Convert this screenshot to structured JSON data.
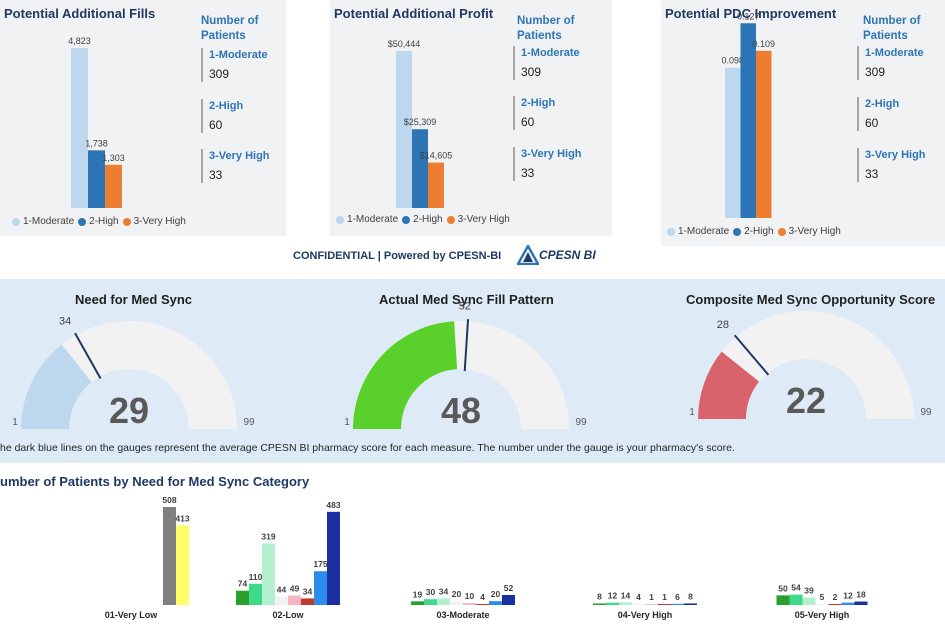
{
  "colors": {
    "moderate": "#bdd7ee",
    "high": "#2e75b6",
    "very_high": "#ed7d31",
    "gauge_bg": "#f2f2f2",
    "avg_line": "#1f3864"
  },
  "fills_chart": {
    "title": "Potential Additional Fills",
    "side_header": "Number of Patients",
    "categories": [
      {
        "name": "1-Moderate",
        "count": "309"
      },
      {
        "name": "2-High",
        "count": "60"
      },
      {
        "name": "3-Very High",
        "count": "33"
      }
    ],
    "legend": [
      "1-Moderate",
      "2-High",
      "3-Very High"
    ]
  },
  "profit_chart": {
    "title": "Potential Additional Profit",
    "side_header": "Number of Patients",
    "categories": [
      {
        "name": "1-Moderate",
        "count": "309"
      },
      {
        "name": "2-High",
        "count": "60"
      },
      {
        "name": "3-Very High",
        "count": "33"
      }
    ],
    "legend": [
      "1-Moderate",
      "2-High",
      "3-Very High"
    ]
  },
  "pdc_chart": {
    "title": "Potential PDC Improvement",
    "side_header": "Number of Patients",
    "categories": [
      {
        "name": "1-Moderate",
        "count": "309"
      },
      {
        "name": "2-High",
        "count": "60"
      },
      {
        "name": "3-Very High",
        "count": "33"
      }
    ],
    "legend": [
      "1-Moderate",
      "2-High",
      "3-Very High"
    ]
  },
  "footer": {
    "confidential": "CONFIDENTIAL | Powered by CPESN-BI",
    "logo_text": "CPESN BI"
  },
  "gauges": [
    {
      "title": "Need for Med Sync",
      "value": 29,
      "value_label": "29",
      "avg": 34,
      "avg_label": "34",
      "min_label": "1",
      "max_label": "99",
      "color": "#bdd7ee"
    },
    {
      "title": "Actual Med Sync Fill Pattern",
      "value": 48,
      "value_label": "48",
      "avg": 52,
      "avg_label": "52",
      "min_label": "1",
      "max_label": "99",
      "color": "#5ad12a"
    },
    {
      "title": "Composite Med Sync Opportunity Score",
      "value": 22,
      "value_label": "22",
      "avg": 28,
      "avg_label": "28",
      "min_label": "1",
      "max_label": "99",
      "color": "#d9636c"
    }
  ],
  "gauge_note": "he dark blue lines on the gauges represent the average CPESN BI pharmacy score for each measure. The number under the gauge is your pharmacy's score.",
  "bottom": {
    "title": "umber of Patients by Need for Med Sync Category"
  },
  "chart_data": [
    {
      "type": "bar",
      "title": "Potential Additional Fills",
      "categories": [
        "1-Moderate",
        "2-High",
        "3-Very High"
      ],
      "values": [
        4823,
        1738,
        1303
      ],
      "value_labels": [
        "4,823",
        "1,738",
        "1,303"
      ],
      "legend": "bottom"
    },
    {
      "type": "bar",
      "title": "Potential Additional Profit",
      "categories": [
        "1-Moderate",
        "2-High",
        "3-Very High"
      ],
      "values": [
        50444,
        25309,
        14605
      ],
      "value_labels": [
        "$50,444",
        "$25,309",
        "$14,605"
      ],
      "legend": "bottom"
    },
    {
      "type": "bar",
      "title": "Potential PDC Improvement",
      "categories": [
        "1-Moderate",
        "2-High",
        "3-Very High"
      ],
      "values": [
        0.098,
        0.127,
        0.109
      ],
      "value_labels": [
        "0.098",
        "0.127",
        "0.109"
      ],
      "legend": "bottom"
    },
    {
      "type": "bar",
      "title": "umber of Patients by Need for Med Sync Category",
      "groups": [
        {
          "label": "01-Very Low",
          "bars": [
            {
              "value": 508,
              "label": "508",
              "color": "#808080"
            },
            {
              "value": 413,
              "label": "413",
              "color": "#ffff66"
            }
          ]
        },
        {
          "label": "02-Low",
          "bars": [
            {
              "value": 74,
              "label": "74",
              "color": "#2ca02c"
            },
            {
              "value": 110,
              "label": "110",
              "color": "#3fd98a"
            },
            {
              "value": 319,
              "label": "319",
              "color": "#b3f0d0"
            },
            {
              "value": 44,
              "label": "44",
              "color": "#f2f2f2"
            },
            {
              "value": 49,
              "label": "49",
              "color": "#f4b6c2"
            },
            {
              "value": 34,
              "label": "34",
              "color": "#c0392b"
            },
            {
              "value": 175,
              "label": "175",
              "color": "#2d8ceb"
            },
            {
              "value": 483,
              "label": "483",
              "color": "#1a2fa0"
            }
          ]
        },
        {
          "label": "03-Moderate",
          "bars": [
            {
              "value": 19,
              "label": "19",
              "color": "#2ca02c"
            },
            {
              "value": 30,
              "label": "30",
              "color": "#3fd98a"
            },
            {
              "value": 34,
              "label": "34",
              "color": "#b3f0d0"
            },
            {
              "value": 20,
              "label": "20",
              "color": "#f2f2f2"
            },
            {
              "value": 10,
              "label": "10",
              "color": "#f4b6c2"
            },
            {
              "value": 4,
              "label": "4",
              "color": "#c0392b"
            },
            {
              "value": 20,
              "label": "20",
              "color": "#2d8ceb"
            },
            {
              "value": 52,
              "label": "52",
              "color": "#1a2fa0"
            }
          ]
        },
        {
          "label": "04-Very High",
          "bars": [
            {
              "value": 8,
              "label": "8",
              "color": "#2ca02c"
            },
            {
              "value": 12,
              "label": "12",
              "color": "#3fd98a"
            },
            {
              "value": 14,
              "label": "14",
              "color": "#b3f0d0"
            },
            {
              "value": 4,
              "label": "4",
              "color": "#f2f2f2"
            },
            {
              "value": 1,
              "label": "1",
              "color": "#f4b6c2"
            },
            {
              "value": 1,
              "label": "1",
              "color": "#c0392b"
            },
            {
              "value": 6,
              "label": "6",
              "color": "#2d8ceb"
            },
            {
              "value": 8,
              "label": "8",
              "color": "#1a2fa0"
            }
          ]
        },
        {
          "label": "05-Very High",
          "bars": [
            {
              "value": 50,
              "label": "50",
              "color": "#2ca02c"
            },
            {
              "value": 54,
              "label": "54",
              "color": "#3fd98a"
            },
            {
              "value": 39,
              "label": "39",
              "color": "#b3f0d0"
            },
            {
              "value": 5,
              "label": "5",
              "color": "#f2f2f2"
            },
            {
              "value": 2,
              "label": "2",
              "color": "#c0392b"
            },
            {
              "value": 12,
              "label": "12",
              "color": "#2d8ceb"
            },
            {
              "value": 18,
              "label": "18",
              "color": "#1a2fa0"
            }
          ]
        }
      ]
    }
  ]
}
